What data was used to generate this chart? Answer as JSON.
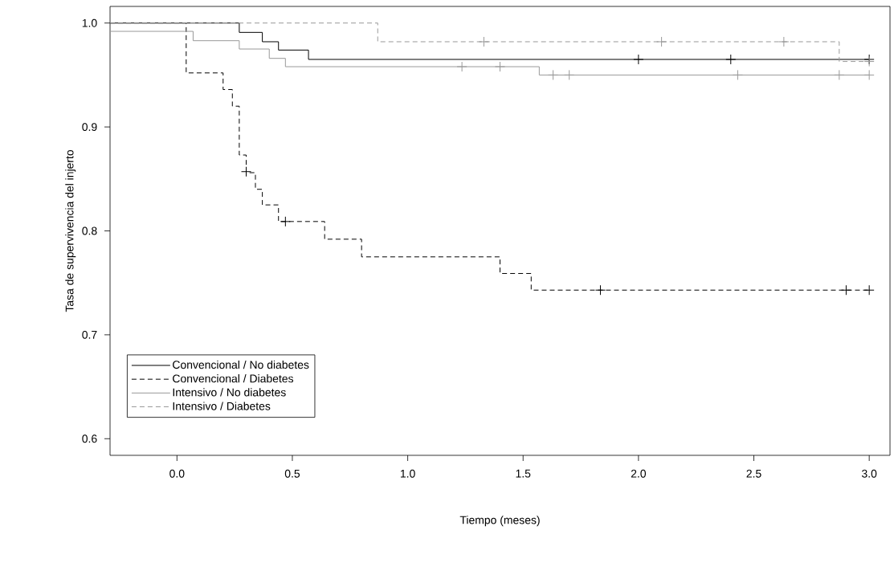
{
  "chart_data": {
    "type": "step",
    "xlabel": "Tiempo (meses)",
    "ylabel": "Tasa de supervivencia del injerto",
    "xlim": [
      -0.29,
      3.09
    ],
    "ylim": [
      0.584,
      1.016
    ],
    "xticks": [
      {
        "value": 0,
        "label": "0.0"
      },
      {
        "value": 0.5,
        "label": "0.5"
      },
      {
        "value": 1,
        "label": "1.0"
      },
      {
        "value": 1.5,
        "label": "1.5"
      },
      {
        "value": 2,
        "label": "2.0"
      },
      {
        "value": 2.5,
        "label": "2.5"
      },
      {
        "value": 3,
        "label": "3.0"
      }
    ],
    "yticks": [
      {
        "value": 0.6,
        "label": "0.6"
      },
      {
        "value": 0.7,
        "label": "0.7"
      },
      {
        "value": 0.8,
        "label": "0.8"
      },
      {
        "value": 0.9,
        "label": "0.9"
      },
      {
        "value": 1,
        "label": "1.0"
      }
    ],
    "grid": false,
    "legend": "bottom left",
    "series": [
      {
        "name": "Convencional / No diabetes",
        "color": "#000000",
        "line_style": "solid",
        "x": [
          -0.29,
          0.27,
          0.37,
          0.44,
          0.57,
          3.0
        ],
        "values": [
          1.0,
          0.991,
          0.982,
          0.974,
          0.965,
          0.965
        ]
      },
      {
        "name": "Convencional / Diabetes",
        "color": "#000000",
        "line_style": "dashed",
        "x": [
          -0.29,
          0.04,
          0.2,
          0.24,
          0.27,
          0.3,
          0.34,
          0.37,
          0.44,
          0.64,
          0.8,
          1.4,
          1.535,
          3.0
        ],
        "values": [
          1.0,
          0.952,
          0.936,
          0.92,
          0.873,
          0.856,
          0.84,
          0.825,
          0.809,
          0.792,
          0.775,
          0.759,
          0.743,
          0.743
        ]
      },
      {
        "name": "Intensivo / No diabetes",
        "color": "#999999",
        "line_style": "solid",
        "x": [
          -0.29,
          0.07,
          0.27,
          0.4,
          0.47,
          1.57,
          3.0
        ],
        "values": [
          0.992,
          0.983,
          0.975,
          0.966,
          0.958,
          0.95,
          0.95
        ]
      },
      {
        "name": "Intensivo / Diabetes",
        "color": "#999999",
        "line_style": "dashed",
        "x": [
          -0.29,
          0.87,
          2.87,
          3.0
        ],
        "values": [
          1.0,
          0.982,
          0.963,
          0.963
        ]
      },
      {
        "type": "scatter",
        "marker": "cross",
        "color": "#000000",
        "x": [
          2.0,
          2.4,
          3.0
        ],
        "values": [
          0.965,
          0.965,
          0.965
        ]
      },
      {
        "type": "scatter",
        "marker": "cross",
        "color": "#000000",
        "x": [
          0.3,
          0.47,
          1.835,
          2.9,
          3.0
        ],
        "values": [
          0.857,
          0.809,
          0.743,
          0.743,
          0.743
        ]
      },
      {
        "type": "scatter",
        "marker": "cross",
        "color": "#999999",
        "x": [
          1.235,
          1.4,
          1.63,
          1.7,
          2.43,
          2.87,
          3.0
        ],
        "values": [
          0.958,
          0.958,
          0.95,
          0.95,
          0.95,
          0.95,
          0.95
        ]
      },
      {
        "type": "scatter",
        "marker": "cross",
        "color": "#999999",
        "x": [
          1.33,
          2.1,
          2.63,
          3.0
        ],
        "values": [
          0.982,
          0.982,
          0.982,
          0.963
        ]
      }
    ]
  }
}
